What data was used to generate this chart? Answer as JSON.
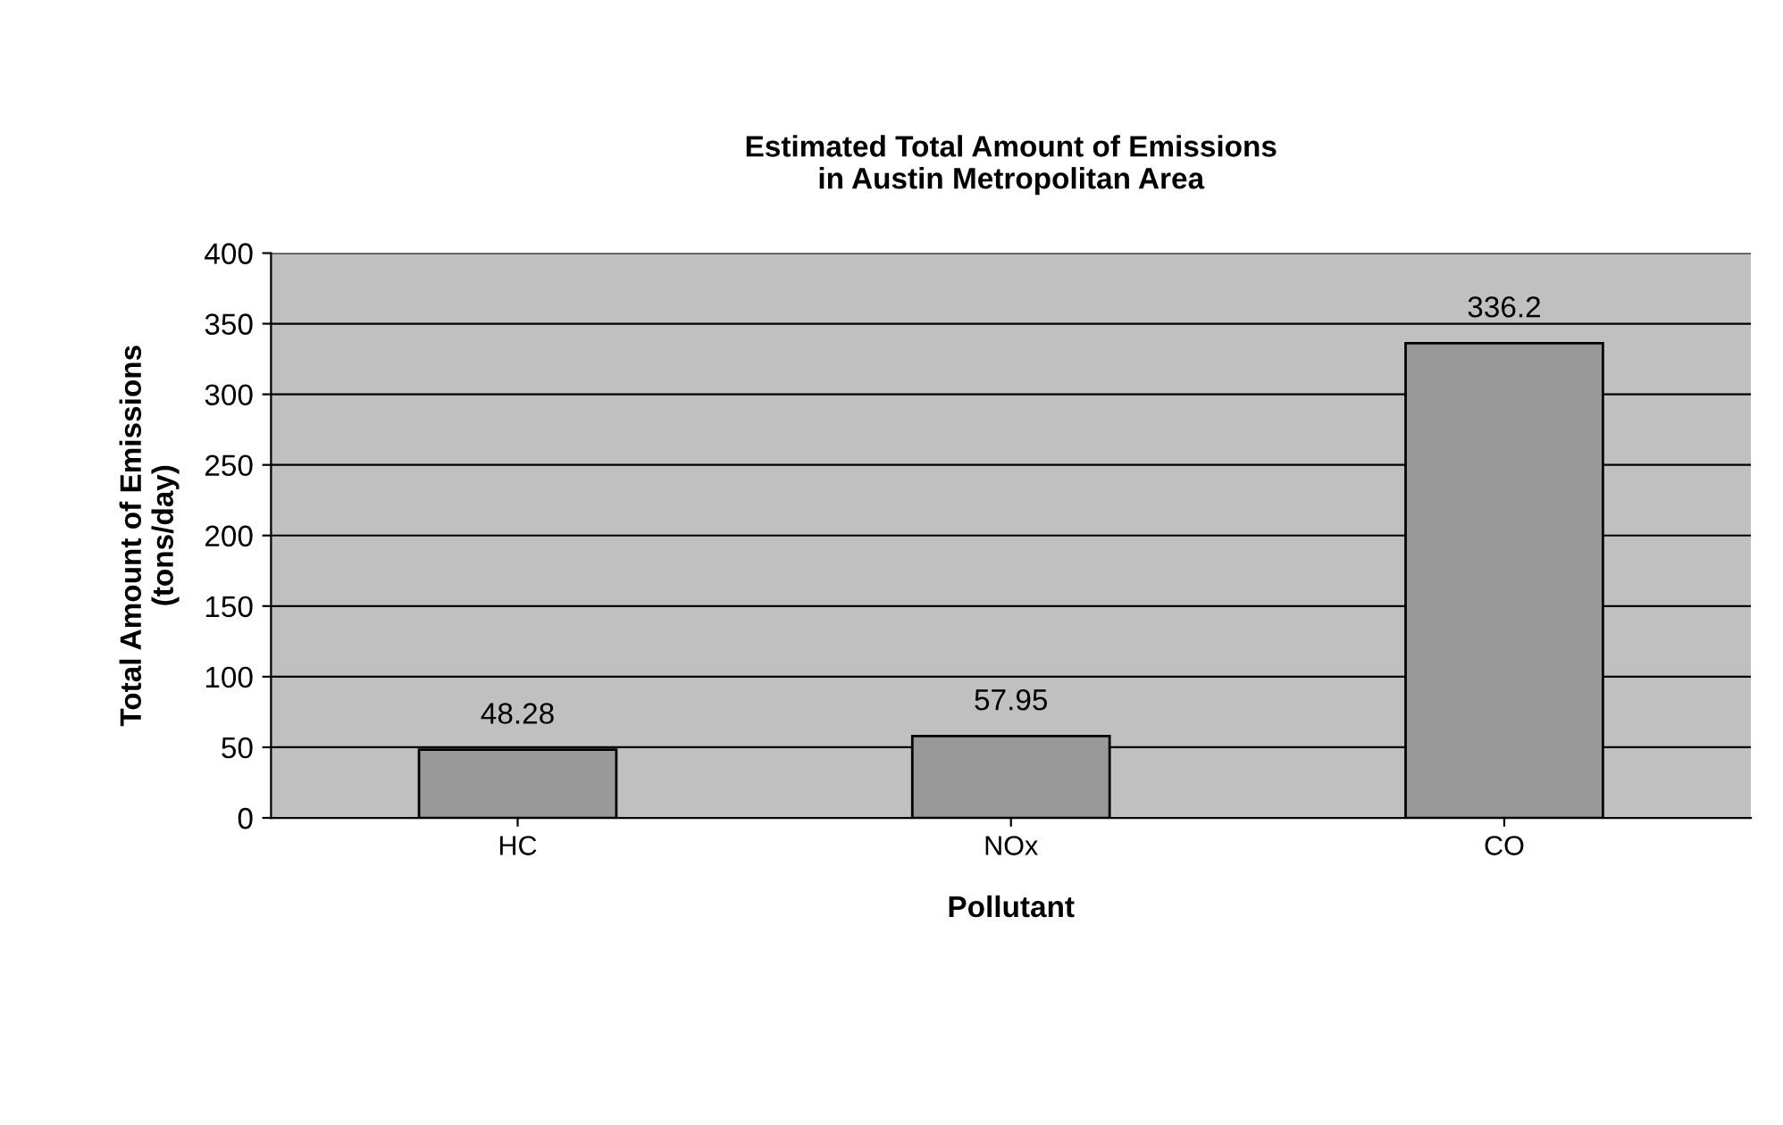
{
  "chart_data": {
    "type": "bar",
    "title": "Estimated Total Amount of Emissions\nin Austin Metropolitan Area",
    "xlabel": "Pollutant",
    "ylabel": "Total Amount of Emissions\n(tons/day)",
    "categories": [
      "HC",
      "NOx",
      "CO"
    ],
    "values": [
      48.28,
      57.95,
      336.2
    ],
    "color": "#999999",
    "ylim": [
      0,
      400
    ],
    "yticks": [
      0,
      50,
      100,
      150,
      200,
      250,
      300,
      350,
      400
    ],
    "grid": "y",
    "data_labels": true
  }
}
